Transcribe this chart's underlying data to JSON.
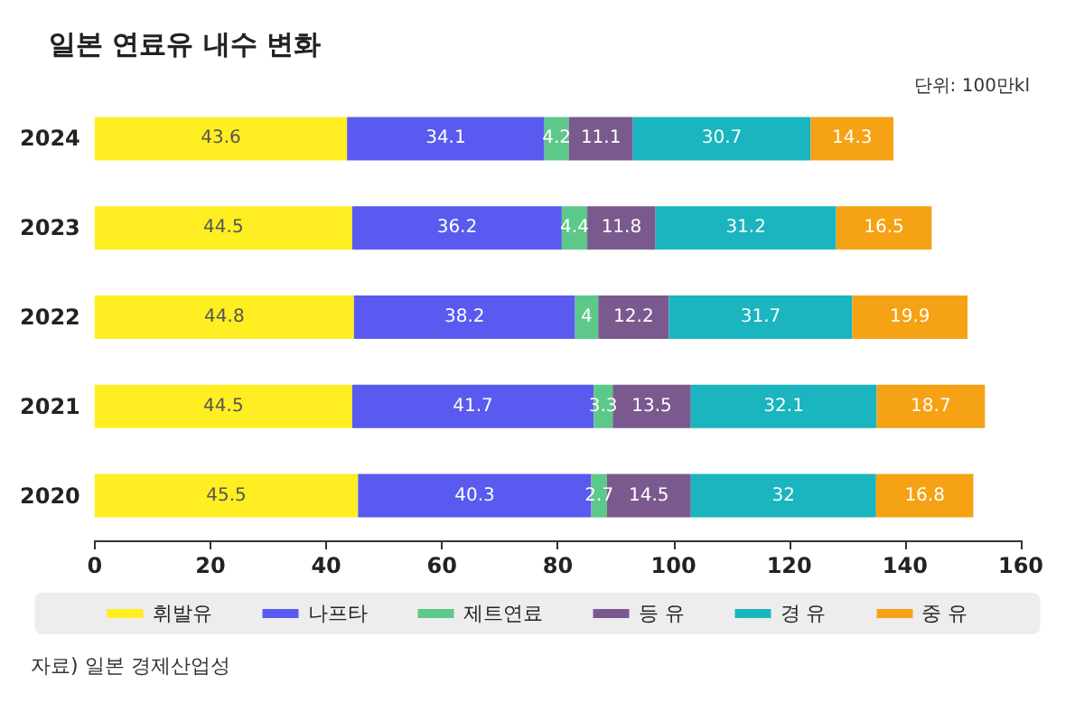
{
  "chart_data": {
    "type": "bar",
    "orientation": "horizontal",
    "stacked": true,
    "title": "일본 연료유 내수 변화",
    "subtitle": "단위: 100만kl",
    "annotations": [
      "자료) 일본 경제산업성"
    ],
    "categories": [
      "2024",
      "2023",
      "2022",
      "2021",
      "2020"
    ],
    "series": [
      {
        "name": "휘발유",
        "color": "#ffee22",
        "values": [
          43.6,
          44.5,
          44.8,
          44.5,
          45.5
        ]
      },
      {
        "name": "나프타",
        "color": "#5a5af0",
        "values": [
          34.1,
          36.2,
          38.2,
          41.7,
          40.3
        ]
      },
      {
        "name": "제트연료",
        "color": "#5cc88a",
        "values": [
          4.2,
          4.4,
          4,
          3.3,
          2.7
        ]
      },
      {
        "name": "등 유",
        "color": "#7a5a8e",
        "values": [
          11.1,
          11.8,
          12.2,
          13.5,
          14.5
        ]
      },
      {
        "name": "경 유",
        "color": "#1ab5bf",
        "values": [
          30.7,
          31.2,
          31.7,
          32.1,
          32
        ]
      },
      {
        "name": "중 유",
        "color": "#f5a214",
        "values": [
          14.3,
          16.5,
          19.9,
          18.7,
          16.8
        ]
      }
    ],
    "xlim": [
      0,
      160
    ],
    "xticks": [
      0,
      20,
      40,
      60,
      80,
      100,
      120,
      140,
      160
    ],
    "grid": false,
    "legend": "bottom",
    "data_labels": true
  }
}
